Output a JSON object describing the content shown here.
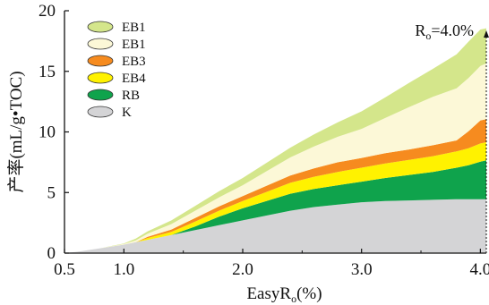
{
  "chart_data": {
    "type": "area",
    "xlabel": "EasyR",
    "xlabel_sub": "o",
    "xlabel_suffix": "(%)",
    "ylabel": "产率(mL/g•TOC)",
    "xlim": [
      0.5,
      4.05
    ],
    "ylim": [
      0,
      20
    ],
    "x_ticks": [
      0.5,
      1.0,
      2.0,
      3.0,
      4.0
    ],
    "x_tick_labels": [
      "0.5",
      "1.0",
      "2.0",
      "3.0",
      "4.0"
    ],
    "y_ticks": [
      0,
      5,
      10,
      15,
      20
    ],
    "y_tick_labels": [
      "0",
      "5",
      "10",
      "15",
      "20"
    ],
    "grid": false,
    "legend_position": "top-left",
    "stacking": "stacked",
    "x": [
      0.5,
      0.6,
      0.8,
      1.0,
      1.1,
      1.2,
      1.4,
      1.6,
      1.8,
      2.0,
      2.2,
      2.4,
      2.6,
      2.8,
      3.0,
      3.2,
      3.4,
      3.6,
      3.8,
      3.9,
      4.0,
      4.05
    ],
    "series": [
      {
        "name": "K",
        "color": "#d4d4d6",
        "values": [
          0,
          0.1,
          0.4,
          0.7,
          0.9,
          1.1,
          1.5,
          1.9,
          2.3,
          2.7,
          3.1,
          3.5,
          3.8,
          4.0,
          4.2,
          4.3,
          4.35,
          4.4,
          4.45,
          4.45,
          4.45,
          4.45
        ]
      },
      {
        "name": "RB",
        "color": "#0fa34c",
        "values": [
          0,
          0,
          0,
          0,
          0,
          0,
          0,
          0.3,
          0.7,
          1.0,
          1.2,
          1.4,
          1.5,
          1.6,
          1.7,
          1.9,
          2.1,
          2.3,
          2.6,
          2.8,
          3.1,
          3.2
        ]
      },
      {
        "name": "EB4",
        "color": "#fff200",
        "values": [
          0,
          0,
          0,
          0,
          0,
          0.15,
          0.25,
          0.4,
          0.5,
          0.6,
          0.75,
          0.9,
          1.0,
          1.1,
          1.15,
          1.2,
          1.25,
          1.3,
          1.35,
          1.4,
          1.5,
          1.5
        ]
      },
      {
        "name": "EB3",
        "color": "#f68b1f",
        "values": [
          0,
          0,
          0,
          0,
          0,
          0.1,
          0.2,
          0.3,
          0.35,
          0.4,
          0.5,
          0.6,
          0.7,
          0.8,
          0.8,
          0.85,
          0.85,
          0.9,
          0.9,
          1.4,
          1.9,
          1.9
        ]
      },
      {
        "name": "EB1",
        "color": "#fcf8d7",
        "values": [
          0,
          0,
          0,
          0.05,
          0.15,
          0.25,
          0.45,
          0.6,
          0.75,
          0.9,
          1.2,
          1.5,
          1.8,
          2.1,
          2.4,
          2.9,
          3.5,
          4.0,
          4.3,
          4.4,
          4.5,
          4.6
        ]
      },
      {
        "name": "EB1",
        "color": "#d4e68b",
        "values": [
          0,
          0,
          0,
          0.05,
          0.15,
          0.2,
          0.3,
          0.4,
          0.5,
          0.6,
          0.7,
          0.8,
          1.0,
          1.2,
          1.45,
          1.7,
          2.0,
          2.3,
          2.8,
          3.0,
          3.0,
          2.9
        ]
      }
    ],
    "legend_order": [
      5,
      4,
      3,
      2,
      1,
      0
    ],
    "annotation": {
      "label_main": "R",
      "label_sub": "o",
      "label_value": "=4.0%",
      "x": 4.05
    }
  }
}
